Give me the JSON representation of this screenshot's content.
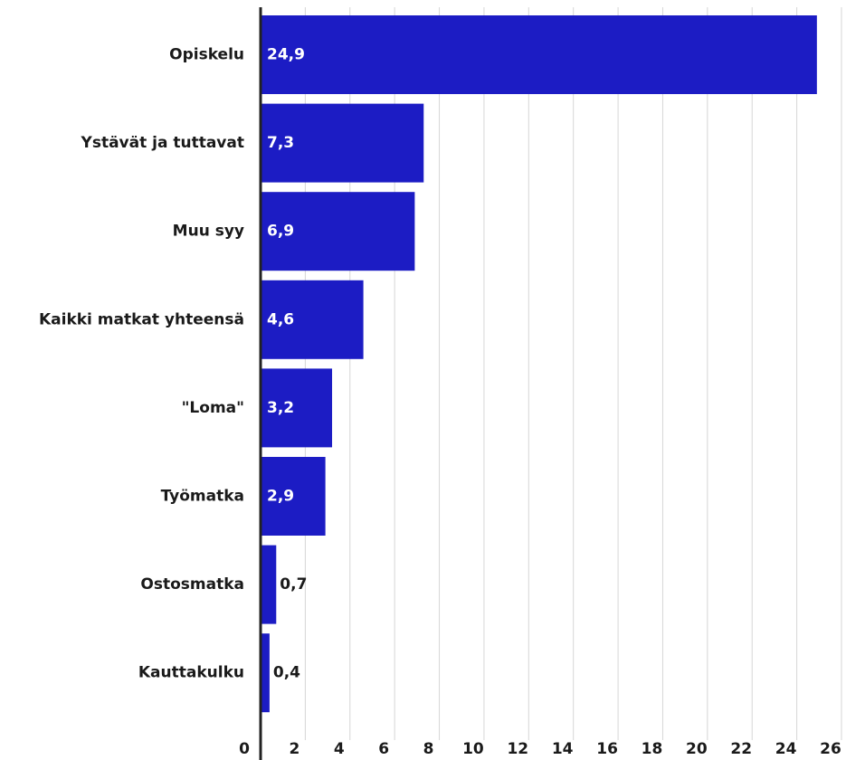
{
  "chart_data": {
    "type": "barh",
    "categories": [
      "Opiskelu",
      "Ystävät ja tuttavat",
      "Muu syy",
      "Kaikki matkat yhteensä",
      "\"Loma\"",
      "Työmatka",
      "Ostosmatka",
      "Kauttakulku"
    ],
    "values": [
      24.9,
      7.3,
      6.9,
      4.6,
      3.2,
      2.9,
      0.7,
      0.4
    ],
    "value_labels": [
      "24,9",
      "7,3",
      "6,9",
      "4,6",
      "3,2",
      "2,9",
      "0,7",
      "0,4"
    ],
    "color": "#1c1cc4",
    "xlim": [
      0,
      26
    ],
    "xticks": [
      0,
      2,
      4,
      6,
      8,
      10,
      12,
      14,
      16,
      18,
      20,
      22,
      24,
      26
    ],
    "grid": true
  }
}
